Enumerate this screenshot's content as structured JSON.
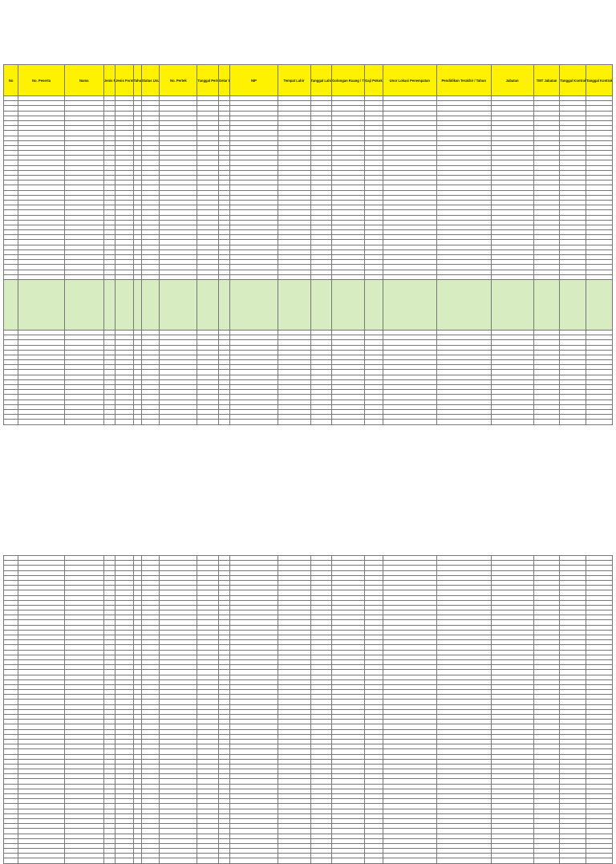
{
  "header": {
    "columns": [
      "No",
      "No. Peserta",
      "Nama",
      "Jenis Pengadaan",
      "Jenis Formasi",
      "Tahun Formasi",
      "Status Usulan",
      "No. Pertek",
      "Tanggal Pertek",
      "Gelar Belakang",
      "NIP",
      "Tempat Lahir",
      "Tanggal Lahir",
      "Golongan Ruang / TMT",
      "Gaji Pokok",
      "Unor Lokasi Penempatan",
      "Pendidikan Terakhir / Tahun",
      "Jabatan",
      "TMT Jabatan",
      "Tanggal Kontrak Awal",
      "Tanggal Kontrak Akhir"
    ]
  },
  "layout": {
    "block1_rows": 37,
    "block2_rows": 19,
    "block3_rows": 62,
    "colors": {
      "header": "#fff200",
      "highlight": "#d7ecc1",
      "grid": "#777777"
    }
  }
}
